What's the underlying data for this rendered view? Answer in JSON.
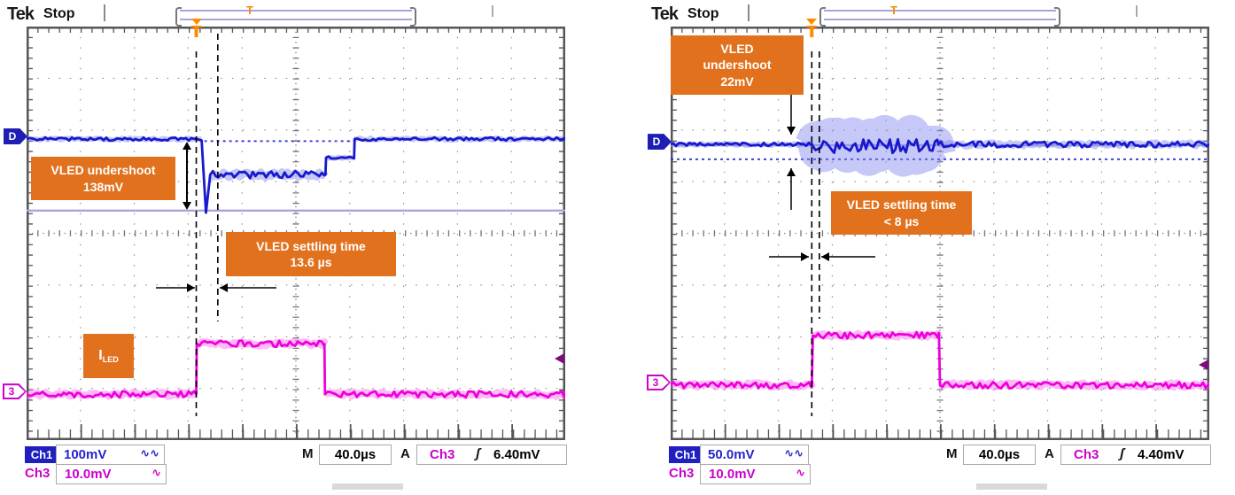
{
  "colors": {
    "ch1_blue": "#1818CF",
    "ch1_fuzz": "#8084EE",
    "ch3_magenta": "#EE00DD",
    "ch3_fuzz": "#FF66EE",
    "annotation_orange": "#E2711D",
    "trigger_orange": "#FF8A00",
    "lavender_cursor": "#A6A6DC",
    "dotted_ref_blue": "#2B2BD5",
    "grid_gray": "#8A8A92",
    "frame_gray": "#55565A",
    "readout_blue": "#2525CC",
    "readout_magenta": "#CC00CC",
    "trig_level_marker": "#7A0E7A"
  },
  "panels": [
    {
      "header": {
        "logo": "Tek",
        "status": "Stop"
      },
      "annotations": {
        "undershoot_text": "VLED undershoot\n138mV",
        "settling_text": "VLED settling time\n13.6 µs",
        "iled_main": "I",
        "iled_sub": "LED"
      },
      "markers": {
        "ch1_ref": "D",
        "ch3_num": "3",
        "trigger": "T"
      },
      "readouts": {
        "ch1_label": "Ch1",
        "ch1_scale": "100mV",
        "ch1_icon": "∿∿",
        "time_label": "M",
        "time_scale": "40.0µs",
        "acq_label": "A",
        "trig_source": "Ch3",
        "trig_slope_icon": "ʃ",
        "trig_level": "6.40mV",
        "ch3_label": "Ch3",
        "ch3_scale": "10.0mV",
        "ch3_icon": "∿"
      }
    },
    {
      "header": {
        "logo": "Tek",
        "status": "Stop"
      },
      "annotations": {
        "undershoot_text": "VLED\nundershoot\n22mV",
        "settling_text": "VLED settling time\n< 8 µs"
      },
      "markers": {
        "ch1_ref": "D",
        "ch3_num": "3",
        "trigger": "T"
      },
      "readouts": {
        "ch1_label": "Ch1",
        "ch1_scale": "50.0mV",
        "ch1_icon": "∿∿",
        "time_label": "M",
        "time_scale": "40.0µs",
        "acq_label": "A",
        "trig_source": "Ch3",
        "trig_slope_icon": "ʃ",
        "trig_level": "4.40mV",
        "ch3_label": "Ch3",
        "ch3_scale": "10.0mV",
        "ch3_icon": "∿"
      }
    }
  ],
  "chart_data": [
    {
      "type": "line",
      "title": "VLED undershoot 138mV, settling time 13.6 µs",
      "x_axis": {
        "time_per_div": "40.0µs",
        "divisions": 10
      },
      "y_axis": {
        "divisions": 8,
        "ch1_volts_per_div": "100mV",
        "ch3_volts_per_div": "10.0mV"
      },
      "grid": "dotted",
      "series": [
        {
          "name": "VLED (Ch1)",
          "role": "ch1",
          "points": [
            [
              0,
              0.272,
              0.004
            ],
            [
              0.325,
              0.272,
              0
            ],
            [
              0.333,
              0.45,
              0
            ],
            [
              0.341,
              0.358,
              0.009
            ],
            [
              0.555,
              0.358,
              0
            ],
            [
              0.556,
              0.317,
              0.003
            ],
            [
              0.608,
              0.317,
              0
            ],
            [
              0.609,
              0.272,
              0.004
            ],
            [
              1,
              0.272,
              0
            ]
          ]
        },
        {
          "name": "ILED (Ch3)",
          "role": "ch3",
          "points": [
            [
              0,
              0.889,
              0.008
            ],
            [
              0.315,
              0.889,
              0
            ],
            [
              0.316,
              0.767,
              0.008
            ],
            [
              0.553,
              0.767,
              0
            ],
            [
              0.554,
              0.889,
              0.008
            ],
            [
              1,
              0.889,
              0
            ]
          ]
        }
      ],
      "cursors": {
        "lavender_y": 0.445,
        "ref_dotted": {
          "y": 0.277,
          "x0": 0.33,
          "x1": 0.61
        },
        "dashed_x": [
          0.315,
          0.355
        ],
        "trig_marker_y": 0.803
      }
    },
    {
      "type": "line",
      "title": "VLED undershoot 22mV, settling time < 8 µs",
      "x_axis": {
        "time_per_div": "40.0µs",
        "divisions": 10
      },
      "y_axis": {
        "divisions": 8,
        "ch1_volts_per_div": "50.0mV",
        "ch3_volts_per_div": "10.0mV"
      },
      "grid": "dotted",
      "series": [
        {
          "name": "VLED (Ch1)",
          "role": "ch1",
          "points": [
            [
              0,
              0.285,
              0.004
            ],
            [
              0.262,
              0.285,
              0
            ],
            [
              0.264,
              0.289,
              0.043
            ],
            [
              0.495,
              0.289,
              0
            ],
            [
              0.497,
              0.285,
              0.007
            ],
            [
              1,
              0.285,
              0
            ]
          ]
        },
        {
          "name": "ILED (Ch3)",
          "role": "ch3",
          "points": [
            [
              0,
              0.867,
              0.008
            ],
            [
              0.262,
              0.867,
              0
            ],
            [
              0.264,
              0.747,
              0.008
            ],
            [
              0.498,
              0.747,
              0
            ],
            [
              0.5,
              0.867,
              0.008
            ],
            [
              1,
              0.867,
              0
            ]
          ]
        }
      ],
      "cursors": {
        "lavender_y": 0.287,
        "ref_dotted": {
          "y": 0.321,
          "x0": 0,
          "x1": 1
        },
        "dashed_x": [
          0.262,
          0.276
        ],
        "trig_marker_y": 0.818
      }
    }
  ]
}
